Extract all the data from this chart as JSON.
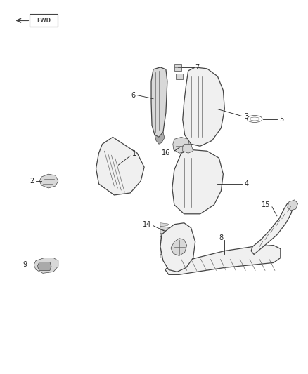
{
  "bg_color": "#ffffff",
  "fig_width": 4.38,
  "fig_height": 5.33,
  "dpi": 100,
  "edge_color": "#444444",
  "face_light": "#f0f0f0",
  "face_mid": "#d8d8d8",
  "face_dark": "#aaaaaa",
  "line_color": "#666666",
  "label_color": "#222222",
  "label_fs": 7.0,
  "lw_part": 0.9,
  "lw_detail": 0.5,
  "lw_leader": 0.6
}
